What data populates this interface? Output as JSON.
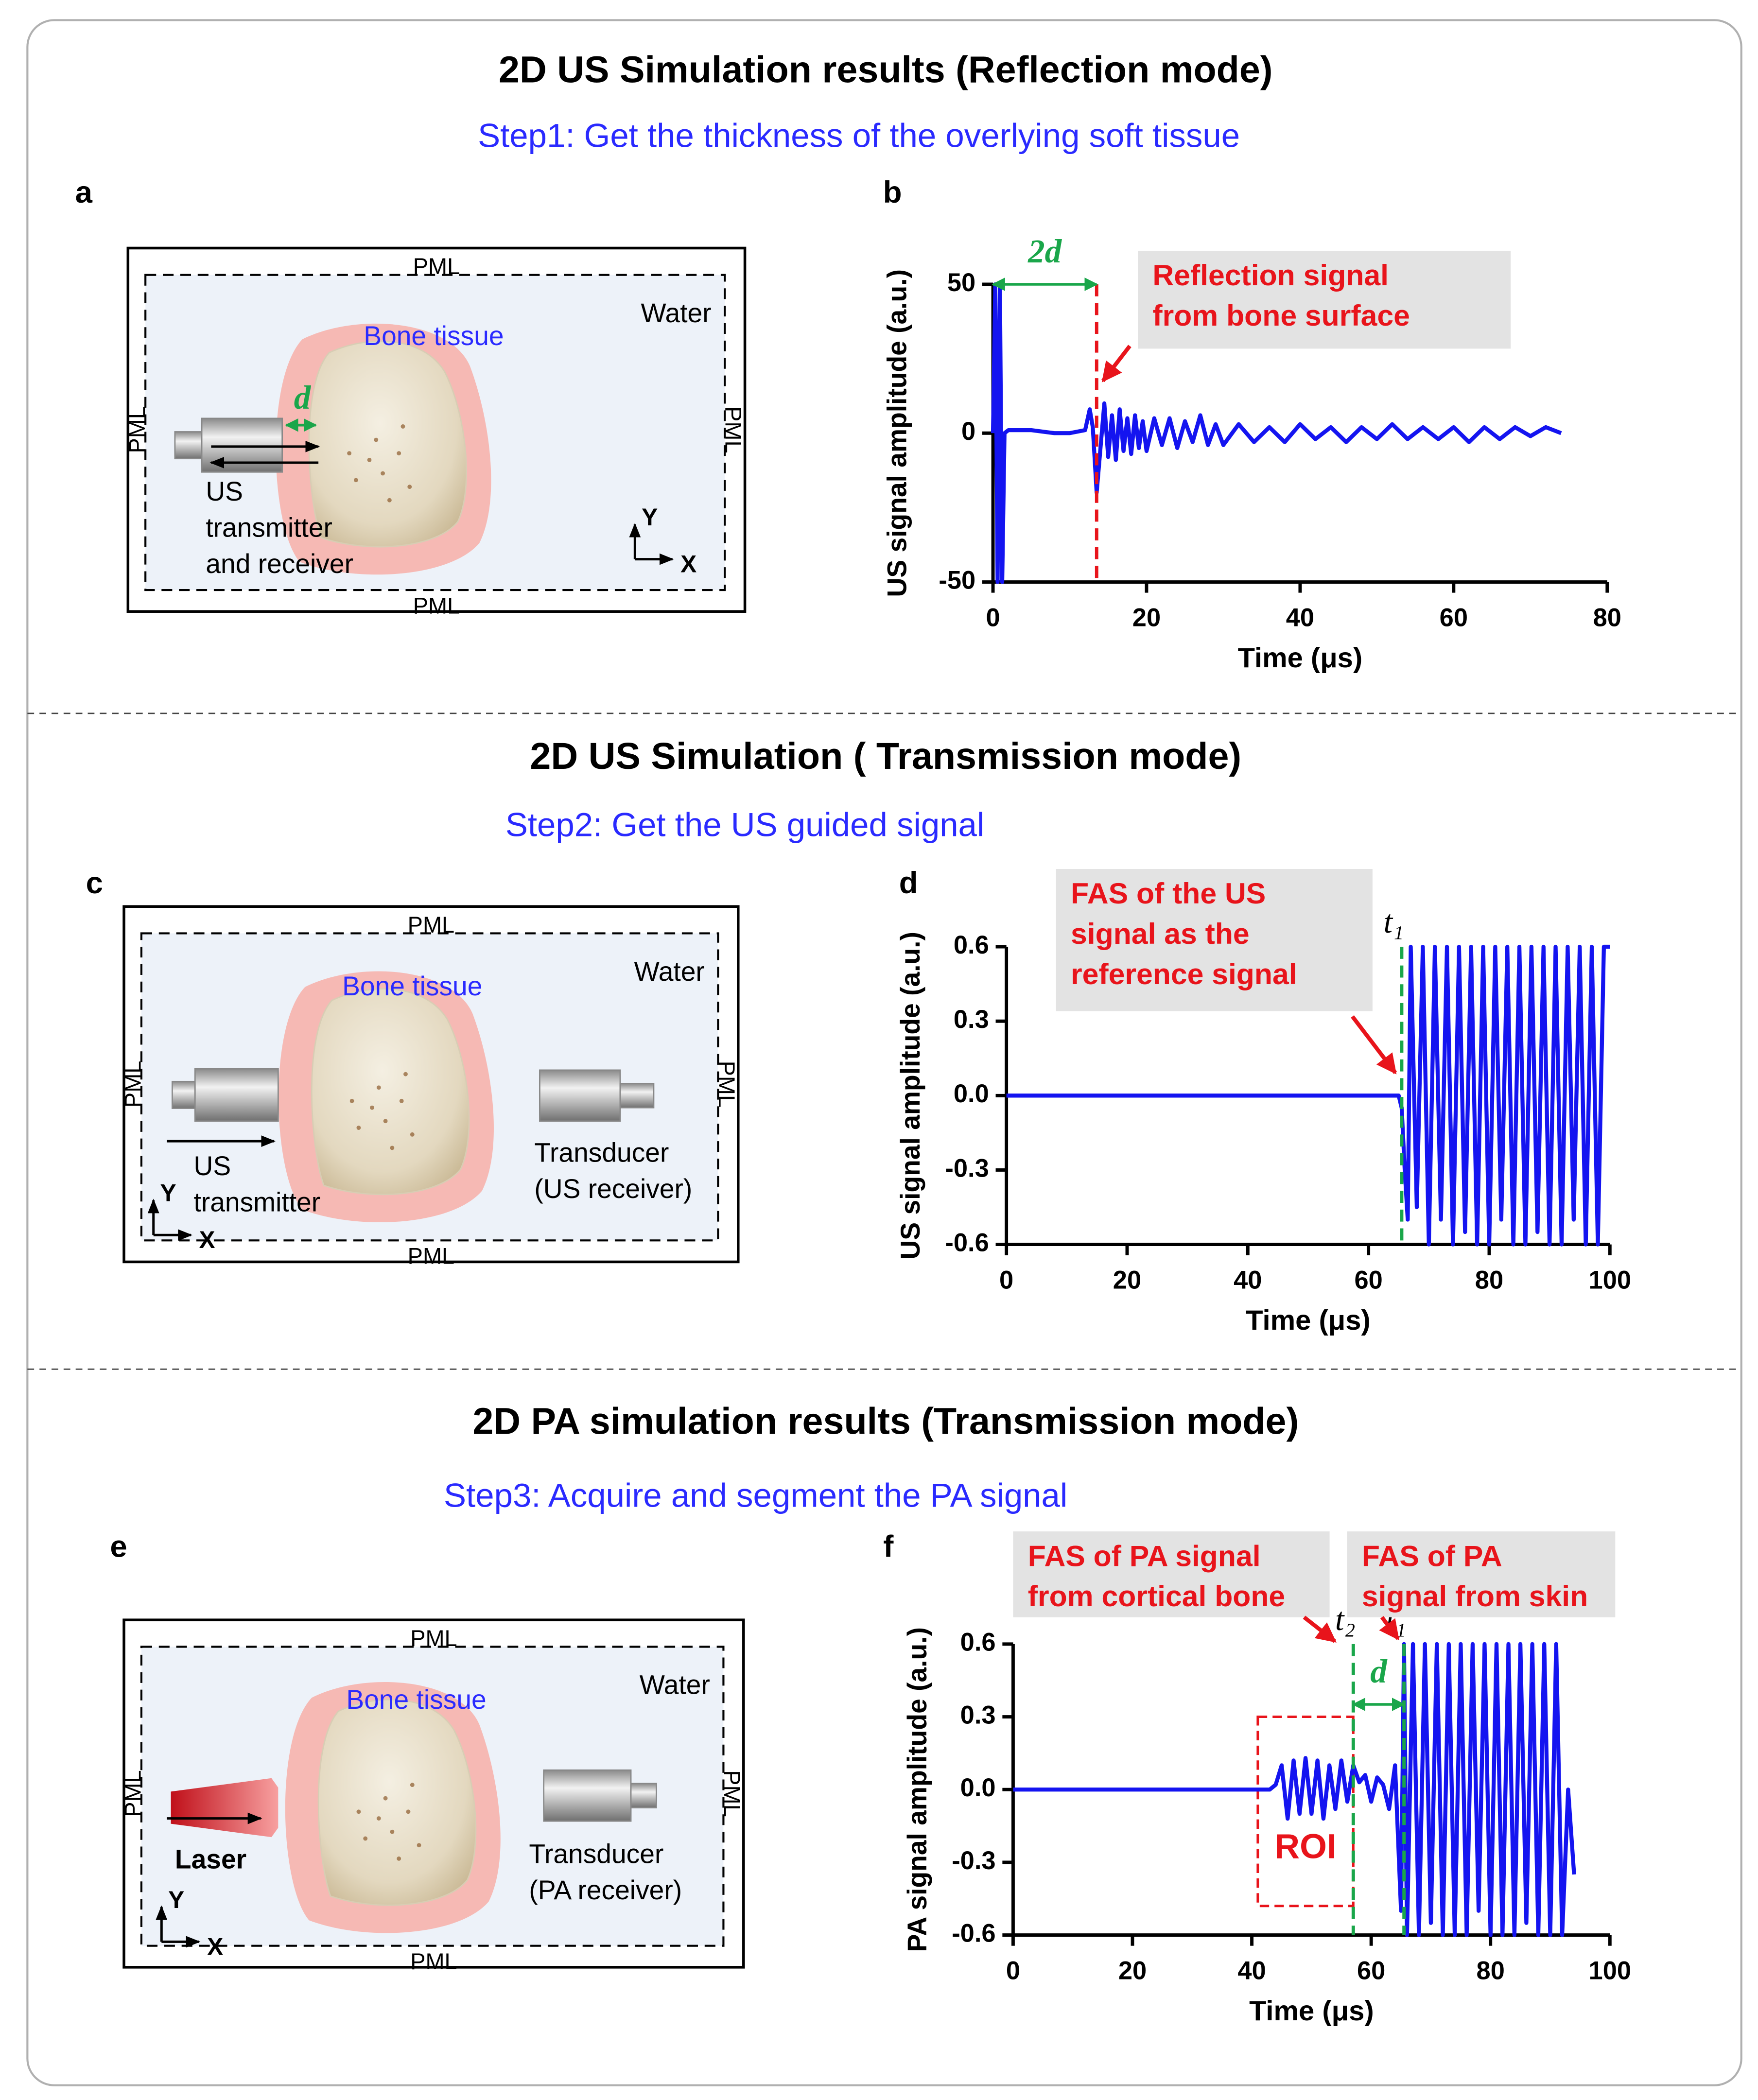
{
  "sections": [
    {
      "title": "2D US Simulation results  (Reflection mode)",
      "step": "Step1: Get the thickness of the overlying soft tissue"
    },
    {
      "title": "2D US Simulation ( Transmission mode)",
      "step": "Step2: Get the US guided signal"
    },
    {
      "title": "2D PA simulation results (Transmission mode)",
      "step": "Step3: Acquire and segment the PA signal"
    }
  ],
  "panels": [
    "a",
    "b",
    "c",
    "d",
    "e",
    "f"
  ],
  "diagrams": [
    {
      "pml": "PML",
      "water": "Water",
      "bone": "Bone tissue",
      "d": "d",
      "source_label": [
        "US",
        "transmitter",
        "and receiver"
      ],
      "y_axis": "Y",
      "x_axis": "X"
    },
    {
      "pml": "PML",
      "water": "Water",
      "bone": "Bone tissue",
      "source_label": [
        "US",
        "transmitter"
      ],
      "receiver_label": [
        "Transducer",
        "(US receiver)"
      ],
      "y_axis": "Y",
      "x_axis": "X"
    },
    {
      "pml": "PML",
      "water": "Water",
      "bone": "Bone tissue",
      "source_label": [
        "Laser"
      ],
      "receiver_label": [
        "Transducer",
        "(PA receiver)"
      ],
      "y_axis": "Y",
      "x_axis": "X"
    }
  ],
  "chart_data": [
    {
      "type": "line",
      "x_label": "Time (μs)",
      "y_label": "US signal amplitude (a.u.)",
      "xlim": [
        0,
        80
      ],
      "xticks": [
        0,
        20,
        40,
        60,
        80
      ],
      "ylim": [
        -50,
        50
      ],
      "yticks": [
        -50,
        0,
        50
      ],
      "series": [
        {
          "color": "#1414f0",
          "x": [
            0,
            0.3,
            0.6,
            0.9,
            1.2,
            1.5,
            2,
            3,
            5,
            8,
            10,
            12,
            12.6,
            13,
            13.5,
            14,
            14.5,
            15,
            15.5,
            16,
            16.5,
            17,
            17.5,
            18,
            18.5,
            19,
            19.5,
            20,
            21,
            22,
            23,
            24,
            25,
            26,
            27,
            28,
            29,
            30,
            32,
            34,
            36,
            38,
            40,
            42,
            44,
            46,
            48,
            50,
            52,
            54,
            56,
            58,
            60,
            62,
            64,
            66,
            68,
            70,
            72,
            74
          ],
          "values": [
            0,
            50,
            -50,
            50,
            -50,
            0,
            1,
            1,
            1,
            0,
            0,
            1,
            8,
            2,
            -20,
            -5,
            10,
            -8,
            6,
            -9,
            8,
            -6,
            5,
            -7,
            6,
            -5,
            4,
            -6,
            5,
            -4,
            5,
            -5,
            4,
            -3,
            6,
            -4,
            3,
            -4,
            3,
            -3,
            2,
            -3,
            3,
            -2,
            2,
            -3,
            2,
            -2,
            3,
            -2,
            2,
            -2,
            2,
            -3,
            2,
            -2,
            2,
            -1,
            2,
            0
          ]
        }
      ],
      "markers": [
        {
          "x": 13.5,
          "color": "#e8141b"
        }
      ],
      "span": {
        "x": [
          0,
          13.5
        ],
        "label": "2d",
        "color": "#1aa64a"
      },
      "annotations": [
        {
          "lines": [
            "Reflection signal",
            "from bone surface"
          ]
        }
      ]
    },
    {
      "type": "line",
      "x_label": "Time (μs)",
      "y_label": "US signal amplitude (a.u.)",
      "xlim": [
        0,
        100
      ],
      "xticks": [
        0,
        20,
        40,
        60,
        80,
        100
      ],
      "ylim": [
        -0.6,
        0.6
      ],
      "yticks": [
        -0.6,
        -0.3,
        {
          "value": 0,
          "label": "0.0"
        },
        0.3,
        0.6
      ],
      "series": [
        {
          "color": "#1414f0",
          "x": [
            0,
            20,
            40,
            60,
            64,
            65,
            65.5,
            66,
            66.5,
            67,
            68,
            69,
            70,
            71,
            72,
            73,
            74,
            75,
            76,
            77,
            78,
            79,
            80,
            81,
            82,
            83,
            84,
            85,
            86,
            87,
            88,
            89,
            90,
            91,
            92,
            93,
            94,
            95,
            96,
            97,
            98,
            99,
            100
          ],
          "values": [
            0,
            0,
            0,
            0,
            0,
            0,
            -0.05,
            -0.3,
            -0.5,
            0.6,
            -0.45,
            0.6,
            -0.6,
            0.6,
            -0.5,
            0.6,
            -0.6,
            0.6,
            -0.55,
            0.6,
            -0.6,
            0.6,
            -0.6,
            0.6,
            -0.5,
            0.6,
            -0.6,
            0.6,
            -0.6,
            0.6,
            -0.55,
            0.6,
            -0.6,
            0.6,
            -0.6,
            0.6,
            -0.5,
            0.6,
            -0.6,
            0.6,
            -0.6,
            0.6,
            0.6
          ]
        }
      ],
      "markers": [
        {
          "x": 65.5,
          "label": "t₁",
          "color": "#1aa64a"
        }
      ],
      "annotations": [
        {
          "lines": [
            "FAS of the US",
            "signal as the",
            "reference signal"
          ]
        }
      ]
    },
    {
      "type": "line",
      "x_label": "Time (μs)",
      "y_label": "PA signal amplitude (a.u.)",
      "xlim": [
        0,
        100
      ],
      "xticks": [
        0,
        20,
        40,
        60,
        80,
        100
      ],
      "ylim": [
        -0.6,
        0.6
      ],
      "yticks": [
        -0.6,
        -0.3,
        {
          "value": 0,
          "label": "0.0"
        },
        0.3,
        0.6
      ],
      "series": [
        {
          "color": "#1414f0",
          "x": [
            0,
            20,
            40,
            43,
            44,
            45,
            46,
            47,
            48,
            49,
            50,
            51,
            52,
            53,
            54,
            55,
            56,
            57,
            58,
            59,
            60,
            61,
            62,
            63,
            64,
            65,
            65.5,
            66,
            67,
            68,
            69,
            70,
            71,
            72,
            73,
            74,
            75,
            76,
            77,
            78,
            79,
            80,
            81,
            82,
            83,
            84,
            85,
            86,
            87,
            88,
            89,
            90,
            91,
            92,
            93,
            94
          ],
          "values": [
            0,
            0,
            0,
            0,
            0.02,
            0.1,
            -0.12,
            0.12,
            -0.1,
            0.13,
            -0.1,
            0.12,
            -0.12,
            0.1,
            -0.08,
            0.12,
            -0.05,
            0.1,
            0.03,
            0.06,
            -0.05,
            0.05,
            0.02,
            -0.08,
            0.1,
            -0.5,
            0.6,
            -0.6,
            0.6,
            -0.6,
            0.6,
            -0.55,
            0.6,
            -0.6,
            0.6,
            -0.6,
            0.6,
            -0.6,
            0.6,
            -0.5,
            0.6,
            -0.6,
            0.6,
            -0.6,
            0.6,
            -0.6,
            0.6,
            -0.55,
            0.6,
            -0.6,
            0.6,
            -0.6,
            0.6,
            -0.6,
            0,
            -0.35
          ]
        }
      ],
      "markers": [
        {
          "x": 57,
          "label": "t₂",
          "color": "#1aa64a"
        },
        {
          "x": 65.5,
          "label": "t₁",
          "color": "#1aa64a"
        }
      ],
      "span": {
        "x": [
          57,
          65.5
        ],
        "label": "d",
        "color": "#1aa64a"
      },
      "roi": {
        "label": "ROI",
        "x": [
          41,
          57
        ],
        "y": [
          -0.48,
          0.3
        ],
        "color": "#e8141b"
      },
      "annotations": [
        {
          "lines": [
            "FAS of PA signal",
            "from cortical bone"
          ]
        },
        {
          "lines": [
            "FAS of PA",
            "signal from skin"
          ]
        }
      ]
    }
  ]
}
